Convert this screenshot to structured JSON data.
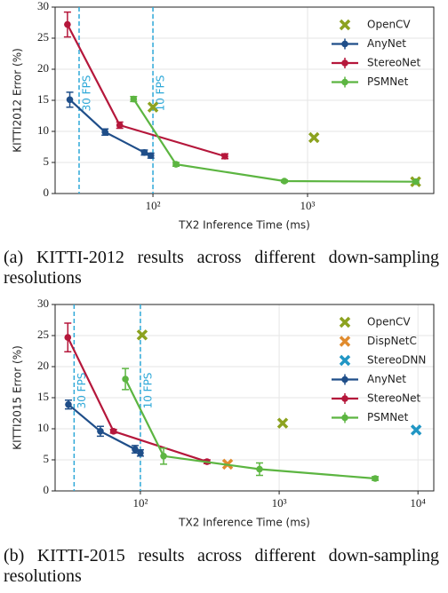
{
  "chart_data": [
    {
      "type": "line",
      "xlabel": "TX2 Inference Time (ms)",
      "ylabel": "KITTI2012 Error (%)",
      "xscale": "log",
      "xlim": [
        23.3,
        6550
      ],
      "ylim": [
        0,
        30
      ],
      "xticks": [
        {
          "value": 100,
          "label": "10²"
        },
        {
          "value": 1000,
          "label": "10³"
        }
      ],
      "yticks": [
        0,
        5,
        10,
        15,
        20,
        25,
        30
      ],
      "grid": true,
      "legend": "upper right",
      "vlines": [
        {
          "x": 33.3,
          "label": "30 FPS",
          "color": "#2ea8d8"
        },
        {
          "x": 100,
          "label": "10 FPS",
          "color": "#2ea8d8"
        }
      ],
      "series": [
        {
          "name": "OpenCV",
          "color": "#8ca21f",
          "marker": "x",
          "line": false,
          "x": [
            100,
            1100,
            5000
          ],
          "values": [
            13.9,
            9.0,
            1.9
          ]
        },
        {
          "name": "AnyNet",
          "color": "#1f4e89",
          "marker": "o",
          "line": true,
          "x": [
            29,
            49,
            88,
            97
          ],
          "values": [
            15.1,
            9.9,
            6.6,
            6.1
          ],
          "errors": [
            1.2,
            0.5,
            0.4,
            0.4
          ]
        },
        {
          "name": "StereoNet",
          "color": "#b5173b",
          "marker": "o",
          "line": true,
          "x": [
            28,
            61,
            292
          ],
          "values": [
            27.2,
            11.0,
            6.0
          ],
          "errors": [
            2.0,
            0.5,
            0.4
          ]
        },
        {
          "name": "PSMNet",
          "color": "#5cb541",
          "marker": "o",
          "line": true,
          "x": [
            75,
            141,
            708,
            5020
          ],
          "values": [
            15.2,
            4.7,
            2.0,
            1.9
          ],
          "errors": [
            0.4,
            0.3,
            0.2,
            0.2
          ]
        }
      ],
      "caption": "(a) KITTI-2012 results across different down-sampling resolutions"
    },
    {
      "type": "line",
      "xlabel": "TX2 Inference Time (ms)",
      "ylabel": "KITTI2015 Error (%)",
      "xscale": "log",
      "xlim": [
        24.3,
        13000
      ],
      "ylim": [
        0,
        30
      ],
      "xticks": [
        {
          "value": 100,
          "label": "10²"
        },
        {
          "value": 1000,
          "label": "10³"
        },
        {
          "value": 10000,
          "label": "10⁴"
        }
      ],
      "yticks": [
        0,
        5,
        10,
        15,
        20,
        25,
        30
      ],
      "grid": true,
      "legend": "upper right",
      "vlines": [
        {
          "x": 33.3,
          "label": "30 FPS",
          "color": "#2ea8d8"
        },
        {
          "x": 100,
          "label": "10 FPS",
          "color": "#2ea8d8"
        }
      ],
      "series": [
        {
          "name": "OpenCV",
          "color": "#8ca21f",
          "marker": "x",
          "line": false,
          "x": [
            103,
            1060
          ],
          "values": [
            25.1,
            10.9
          ]
        },
        {
          "name": "DispNetC",
          "color": "#e08b2e",
          "marker": "x",
          "line": false,
          "x": [
            425
          ],
          "values": [
            4.3
          ]
        },
        {
          "name": "StereoDNN",
          "color": "#2196c4",
          "marker": "x",
          "line": false,
          "x": [
            9700
          ],
          "values": [
            9.8
          ]
        },
        {
          "name": "AnyNet",
          "color": "#1f4e89",
          "marker": "o",
          "line": true,
          "x": [
            30.3,
            51.5,
            91.6,
            100
          ],
          "values": [
            13.9,
            9.6,
            6.7,
            6.1
          ],
          "errors": [
            0.7,
            0.8,
            0.6,
            0.5
          ]
        },
        {
          "name": "StereoNet",
          "color": "#b5173b",
          "marker": "o",
          "line": true,
          "x": [
            30,
            64,
            302
          ],
          "values": [
            24.7,
            9.6,
            4.7
          ],
          "errors": [
            2.3,
            0.3,
            0.3
          ]
        },
        {
          "name": "PSMNet",
          "color": "#5cb541",
          "marker": "o",
          "line": true,
          "x": [
            78,
            147,
            722,
            4920
          ],
          "values": [
            18.0,
            5.6,
            3.5,
            2.0
          ],
          "errors": [
            1.7,
            1.3,
            1.0,
            0.3
          ]
        }
      ],
      "caption": "(b) KITTI-2015 results across different down-sampling resolutions"
    }
  ]
}
